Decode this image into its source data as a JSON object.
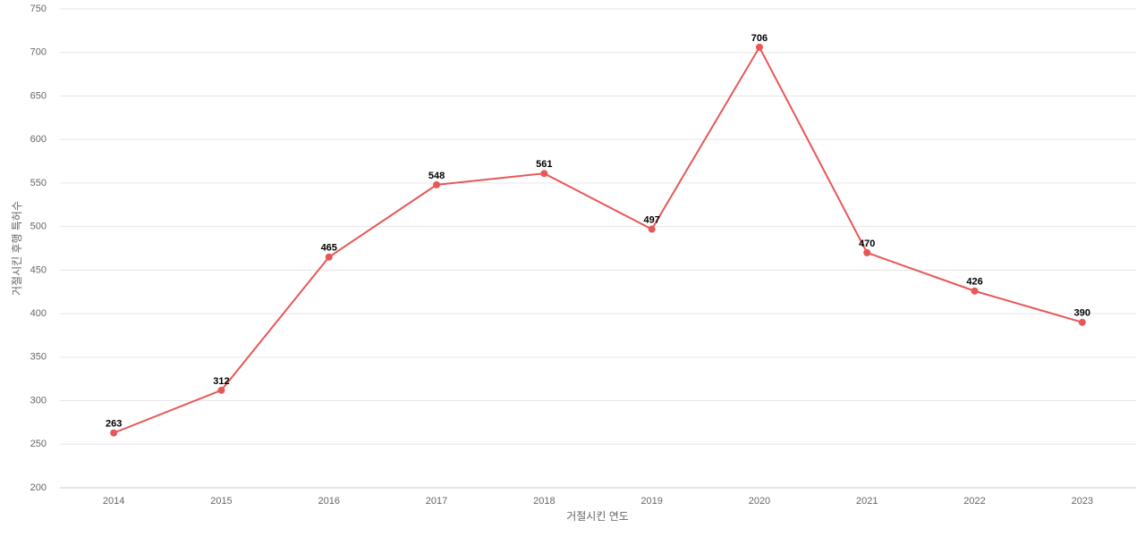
{
  "chart_data": {
    "type": "line",
    "x_label": "거절시킨 연도",
    "y_label": "거절시킨 후행 특허수",
    "categories": [
      "2014",
      "2015",
      "2016",
      "2017",
      "2018",
      "2019",
      "2020",
      "2021",
      "2022",
      "2023"
    ],
    "series": [
      {
        "color": "#e85757",
        "values": [
          263,
          312,
          465,
          548,
          561,
          497,
          706,
          470,
          426,
          390
        ]
      }
    ],
    "ylim": [
      200,
      750
    ],
    "yticks": [
      200,
      250,
      300,
      350,
      400,
      450,
      500,
      550,
      600,
      650,
      700,
      750
    ],
    "grid": true
  }
}
